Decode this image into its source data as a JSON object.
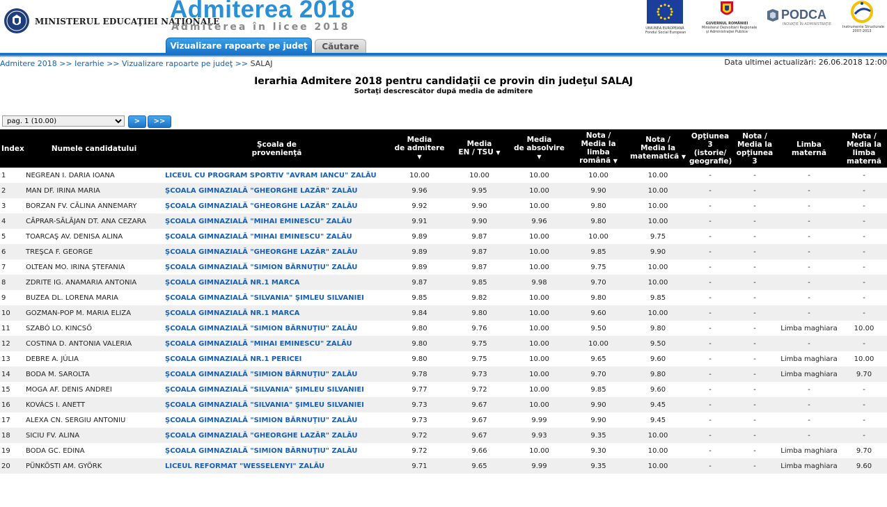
{
  "header": {
    "ministry": "MINISTERUL EDUCAŢIEI NAŢIONALE",
    "app_title": "Admiterea 2018",
    "app_subtitle": "Admiterea în licee 2018",
    "tabs": [
      {
        "label": "Vizualizare rapoarte pe judeţ",
        "active": true
      },
      {
        "label": "Căutare",
        "active": false
      }
    ],
    "logos": {
      "eu_caption": [
        "UNIUNEA EUROPEANĂ",
        "Fondul Social European"
      ],
      "gov_caption": [
        "GUVERNUL ROMÂNIEI",
        "Ministerul Dezvoltării Regionale",
        "şi Administraţiei Publice"
      ],
      "podca_name": "PODCA",
      "podca_tagline": "INOVAŢIE ÎN ADMINISTRAŢIE",
      "is_caption": [
        "Instrumente Structurale",
        "2007-2013"
      ]
    },
    "colors": {
      "accent": "#1a73c6",
      "title_blue": "#2b8fd8",
      "link": "#1a5fb4",
      "header_bg": "#000000",
      "row_alt": "#efefef"
    }
  },
  "breadcrumb": {
    "items": [
      "Admitere 2018",
      "Ierarhie",
      "Vizualizare rapoarte pe judeţ"
    ],
    "separator": ">>",
    "current": "SALAJ"
  },
  "last_update": "Data ultimei actualizări: 26.06.2018 12:00",
  "page": {
    "title": "Ierarhia Admitere 2018 pentru candidaţii ce provin din judeţul SALAJ",
    "subtitle": "Sortaţi descrescător după media de admitere"
  },
  "pager": {
    "selected": "pag. 1 (10.00)",
    "next_label": ">",
    "last_label": ">>"
  },
  "table": {
    "headers": {
      "index": "Index",
      "name": "Numele candidatului",
      "school": [
        "Şcoala de",
        "provenienţă"
      ],
      "media_admitere": [
        "Media",
        "de admitere"
      ],
      "media_en": [
        "Media",
        "EN / TSU"
      ],
      "media_absolvire": [
        "Media",
        "de absolvire"
      ],
      "nota_romana": [
        "Nota /",
        "Media la",
        "limba",
        "română"
      ],
      "nota_mate": [
        "Nota /",
        "Media la",
        "matematică"
      ],
      "optiunea": [
        "Opţiunea",
        "3",
        "(istorie/",
        "geografie)"
      ],
      "nota_optiunea": [
        "Nota /",
        "Media la",
        "opţiunea",
        "3"
      ],
      "limba_materna": [
        "Limba",
        "maternă"
      ],
      "nota_materna": [
        "Nota /",
        "Media la",
        "limba",
        "maternă"
      ]
    },
    "rows": [
      {
        "index": "1",
        "name": "NEGREAN I. DARIA IOANA",
        "school": "LICEUL CU PROGRAM SPORTIV \"AVRAM IANCU\" ZALĂU",
        "adm": "10.00",
        "en": "10.00",
        "abs": "10.00",
        "rom": "10.00",
        "mat": "10.00",
        "opt": "-",
        "nopt": "-",
        "lm": "-",
        "nlm": "-"
      },
      {
        "index": "2",
        "name": "MAN DF. IRINA MARIA",
        "school": "ŞCOALA GIMNAZIALĂ \"GHEORGHE LAZĂR\" ZALĂU",
        "adm": "9.96",
        "en": "9.95",
        "abs": "10.00",
        "rom": "9.90",
        "mat": "10.00",
        "opt": "-",
        "nopt": "-",
        "lm": "-",
        "nlm": "-"
      },
      {
        "index": "3",
        "name": "BORZAN FV. CĂLINA ANNEMARY",
        "school": "ŞCOALA GIMNAZIALĂ \"GHEORGHE LAZĂR\" ZALĂU",
        "adm": "9.92",
        "en": "9.90",
        "abs": "10.00",
        "rom": "9.80",
        "mat": "10.00",
        "opt": "-",
        "nopt": "-",
        "lm": "-",
        "nlm": "-"
      },
      {
        "index": "4",
        "name": "CĂPRAR-SĂLĂJAN DT. ANA CEZARA",
        "school": "ŞCOALA GIMNAZIALĂ \"MIHAI EMINESCU\" ZALĂU",
        "adm": "9.91",
        "en": "9.90",
        "abs": "9.96",
        "rom": "9.80",
        "mat": "10.00",
        "opt": "-",
        "nopt": "-",
        "lm": "-",
        "nlm": "-"
      },
      {
        "index": "5",
        "name": "TOARCAŞ AV. DENISA ALINA",
        "school": "ŞCOALA GIMNAZIALĂ \"MIHAI EMINESCU\" ZALĂU",
        "adm": "9.89",
        "en": "9.87",
        "abs": "10.00",
        "rom": "10.00",
        "mat": "9.75",
        "opt": "-",
        "nopt": "-",
        "lm": "-",
        "nlm": "-"
      },
      {
        "index": "6",
        "name": "TREŞCA F. GEORGE",
        "school": "ŞCOALA GIMNAZIALĂ \"GHEORGHE LAZĂR\" ZALĂU",
        "adm": "9.89",
        "en": "9.87",
        "abs": "10.00",
        "rom": "9.85",
        "mat": "9.90",
        "opt": "-",
        "nopt": "-",
        "lm": "-",
        "nlm": "-"
      },
      {
        "index": "7",
        "name": "OLTEAN MO. IRINA ŞTEFANIA",
        "school": "ŞCOALA GIMNAZIALĂ \"SIMION BĂRNUŢIU\" ZALĂU",
        "adm": "9.89",
        "en": "9.87",
        "abs": "10.00",
        "rom": "9.75",
        "mat": "10.00",
        "opt": "-",
        "nopt": "-",
        "lm": "-",
        "nlm": "-"
      },
      {
        "index": "8",
        "name": "ZDRITE IG. ANAMARIA ANTONIA",
        "school": "ŞCOALA GIMNAZIALĂ NR.1 MARCA",
        "adm": "9.87",
        "en": "9.85",
        "abs": "9.98",
        "rom": "9.70",
        "mat": "10.00",
        "opt": "-",
        "nopt": "-",
        "lm": "-",
        "nlm": "-"
      },
      {
        "index": "9",
        "name": "BUZEA DL. LORENA MARIA",
        "school": "ŞCOALA GIMNAZIALĂ \"SILVANIA\" ŞIMLEU SILVANIEI",
        "adm": "9.85",
        "en": "9.82",
        "abs": "10.00",
        "rom": "9.80",
        "mat": "9.85",
        "opt": "-",
        "nopt": "-",
        "lm": "-",
        "nlm": "-"
      },
      {
        "index": "10",
        "name": "GOZMAN-POP M. MARIA ELIZA",
        "school": "ŞCOALA GIMNAZIALĂ NR.1 MARCA",
        "adm": "9.84",
        "en": "9.80",
        "abs": "10.00",
        "rom": "9.60",
        "mat": "10.00",
        "opt": "-",
        "nopt": "-",
        "lm": "-",
        "nlm": "-"
      },
      {
        "index": "11",
        "name": "SZABÓ LO. KINCSŐ",
        "school": "ŞCOALA GIMNAZIALĂ \"SIMION BĂRNUŢIU\" ZALĂU",
        "adm": "9.80",
        "en": "9.76",
        "abs": "10.00",
        "rom": "9.50",
        "mat": "9.80",
        "opt": "-",
        "nopt": "-",
        "lm": "Limba maghiara",
        "nlm": "10.00"
      },
      {
        "index": "12",
        "name": "COSTINA D. ANTONIA VALERIA",
        "school": "ŞCOALA GIMNAZIALĂ \"MIHAI EMINESCU\" ZALĂU",
        "adm": "9.80",
        "en": "9.75",
        "abs": "10.00",
        "rom": "10.00",
        "mat": "9.50",
        "opt": "-",
        "nopt": "-",
        "lm": "-",
        "nlm": "-"
      },
      {
        "index": "13",
        "name": "DEBRE A. JÚLIA",
        "school": "ŞCOALA GIMNAZIALĂ NR.1 PERICEI",
        "adm": "9.80",
        "en": "9.75",
        "abs": "10.00",
        "rom": "9.65",
        "mat": "9.60",
        "opt": "-",
        "nopt": "-",
        "lm": "Limba maghiara",
        "nlm": "10.00"
      },
      {
        "index": "14",
        "name": "BODA M. SAROLTA",
        "school": "ŞCOALA GIMNAZIALĂ \"SIMION BĂRNUŢIU\" ZALĂU",
        "adm": "9.78",
        "en": "9.73",
        "abs": "10.00",
        "rom": "9.70",
        "mat": "9.80",
        "opt": "-",
        "nopt": "-",
        "lm": "Limba maghiara",
        "nlm": "9.70"
      },
      {
        "index": "15",
        "name": "MOGA AF. DENIS ANDREI",
        "school": "ŞCOALA GIMNAZIALĂ \"SILVANIA\" ŞIMLEU SILVANIEI",
        "adm": "9.77",
        "en": "9.72",
        "abs": "10.00",
        "rom": "9.85",
        "mat": "9.60",
        "opt": "-",
        "nopt": "-",
        "lm": "-",
        "nlm": "-"
      },
      {
        "index": "16",
        "name": "KOVÁCS I. ANETT",
        "school": "ŞCOALA GIMNAZIALĂ \"SILVANIA\" ŞIMLEU SILVANIEI",
        "adm": "9.73",
        "en": "9.67",
        "abs": "10.00",
        "rom": "9.90",
        "mat": "9.45",
        "opt": "-",
        "nopt": "-",
        "lm": "-",
        "nlm": "-"
      },
      {
        "index": "17",
        "name": "ALEXA CN. SERGIU ANTONIU",
        "school": "ŞCOALA GIMNAZIALĂ \"SIMION BĂRNUŢIU\" ZALĂU",
        "adm": "9.73",
        "en": "9.67",
        "abs": "9.99",
        "rom": "9.90",
        "mat": "9.45",
        "opt": "-",
        "nopt": "-",
        "lm": "-",
        "nlm": "-"
      },
      {
        "index": "18",
        "name": "SICIU FV. ALINA",
        "school": "ŞCOALA GIMNAZIALĂ \"GHEORGHE LAZĂR\" ZALĂU",
        "adm": "9.72",
        "en": "9.67",
        "abs": "9.93",
        "rom": "9.35",
        "mat": "10.00",
        "opt": "-",
        "nopt": "-",
        "lm": "-",
        "nlm": "-"
      },
      {
        "index": "19",
        "name": "BODA GC. EDINA",
        "school": "ŞCOALA GIMNAZIALĂ \"SIMION BĂRNUŢIU\" ZALĂU",
        "adm": "9.72",
        "en": "9.66",
        "abs": "10.00",
        "rom": "9.30",
        "mat": "10.00",
        "opt": "-",
        "nopt": "-",
        "lm": "Limba maghiara",
        "nlm": "9.70"
      },
      {
        "index": "20",
        "name": "PÜNKÖSTI AM. GYÖRK",
        "school": "LICEUL REFORMAT \"WESSELENYI\" ZALĂU",
        "adm": "9.71",
        "en": "9.65",
        "abs": "9.99",
        "rom": "9.35",
        "mat": "10.00",
        "opt": "-",
        "nopt": "-",
        "lm": "Limba maghiara",
        "nlm": "9.60"
      }
    ]
  }
}
